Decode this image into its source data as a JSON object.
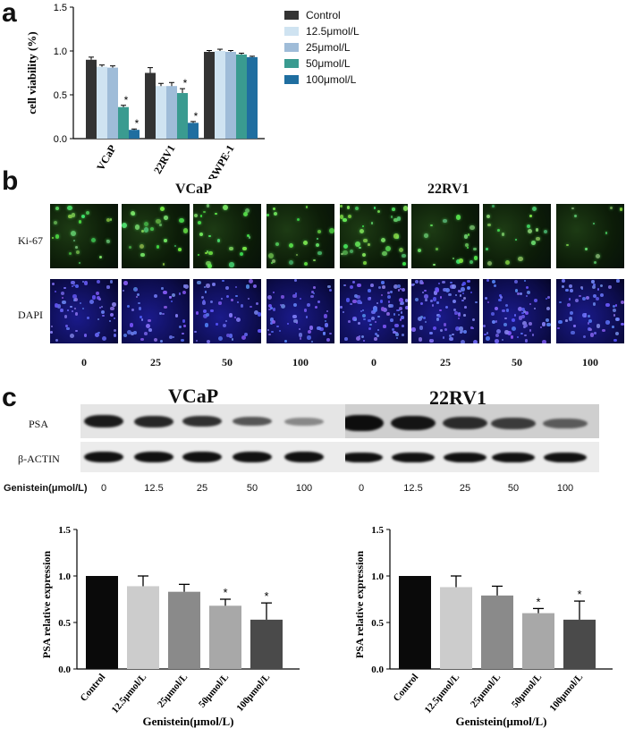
{
  "panels": {
    "a": "a",
    "b": "b",
    "c1": "c",
    "c2": "c"
  },
  "chart_data": [
    {
      "type": "bar",
      "ylabel": "cell viability (%)",
      "ylim": [
        0,
        1.5
      ],
      "yticks": [
        "0.0",
        "0.5",
        "1.0",
        "1.5"
      ],
      "categories": [
        "VCaP",
        "22RV1",
        "RWPE-1"
      ],
      "series": [
        {
          "name": "Control",
          "values": [
            0.9,
            0.75,
            0.99
          ],
          "errors": [
            0.03,
            0.06,
            0.015
          ],
          "color": "#333333"
        },
        {
          "name": "12.5μmol/L",
          "values": [
            0.82,
            0.6,
            1.0
          ],
          "errors": [
            0.02,
            0.03,
            0.02
          ],
          "color": "#cfe3f1"
        },
        {
          "name": "25μmol/L",
          "values": [
            0.81,
            0.6,
            0.99
          ],
          "errors": [
            0.02,
            0.04,
            0.015
          ],
          "color": "#9fbcd8"
        },
        {
          "name": "50μmol/L",
          "values": [
            0.36,
            0.52,
            0.96
          ],
          "errors": [
            0.02,
            0.05,
            0.015
          ],
          "color": "#3a9b90"
        },
        {
          "name": "100μmol/L",
          "values": [
            0.1,
            0.18,
            0.93
          ],
          "errors": [
            0.01,
            0.015,
            0.01
          ],
          "color": "#1f6ea0"
        }
      ],
      "significance": [
        [
          false,
          false,
          false,
          true,
          true
        ],
        [
          false,
          false,
          false,
          true,
          true
        ],
        [
          false,
          false,
          false,
          false,
          false
        ]
      ],
      "star": "*",
      "legend": "right"
    },
    {
      "type": "bar",
      "ylabel": "PSA relative expression",
      "xlabel": "Genistein(μmol/L)",
      "ylim": [
        0,
        1.5
      ],
      "yticks": [
        "0.0",
        "0.5",
        "1.0",
        "1.5"
      ],
      "categories": [
        "Control",
        "12.5μmol/L",
        "25μmol/L",
        "50μmol/L",
        "100μmol/L"
      ],
      "values": [
        1.0,
        0.89,
        0.83,
        0.68,
        0.53
      ],
      "errors": [
        0,
        0.11,
        0.08,
        0.07,
        0.18
      ],
      "significant": [
        false,
        false,
        false,
        true,
        true
      ],
      "colors": [
        "#0a0a0a",
        "#cccccc",
        "#8a8a8a",
        "#a8a8a8",
        "#4a4a4a"
      ]
    },
    {
      "type": "bar",
      "ylabel": "PSA relative expression",
      "xlabel": "Genistein(μmol/L)",
      "ylim": [
        0,
        1.5
      ],
      "yticks": [
        "0.0",
        "0.5",
        "1.0",
        "1.5"
      ],
      "categories": [
        "Control",
        "12.5μmol/L",
        "25μmol/L",
        "50μmol/L",
        "100μmol/L"
      ],
      "values": [
        1.0,
        0.88,
        0.79,
        0.6,
        0.53
      ],
      "errors": [
        0,
        0.12,
        0.1,
        0.05,
        0.2
      ],
      "significant": [
        false,
        false,
        false,
        true,
        true
      ],
      "colors": [
        "#0a0a0a",
        "#cccccc",
        "#8a8a8a",
        "#a8a8a8",
        "#4a4a4a"
      ]
    }
  ],
  "panel_b": {
    "groups": [
      "VCaP",
      "22RV1"
    ],
    "rows": [
      "Ki-67",
      "DAPI"
    ],
    "doses": [
      "0",
      "25",
      "50",
      "100",
      "0",
      "25",
      "50",
      "100"
    ]
  },
  "panel_c": {
    "groups": [
      "VCaP",
      "22RV1"
    ],
    "rows": [
      "PSA",
      "β-ACTIN"
    ],
    "dose_label": "Genistein(μmol/L)",
    "doses": [
      "0",
      "12.5",
      "25",
      "50",
      "100",
      "0",
      "12.5",
      "25",
      "50",
      "100"
    ]
  }
}
